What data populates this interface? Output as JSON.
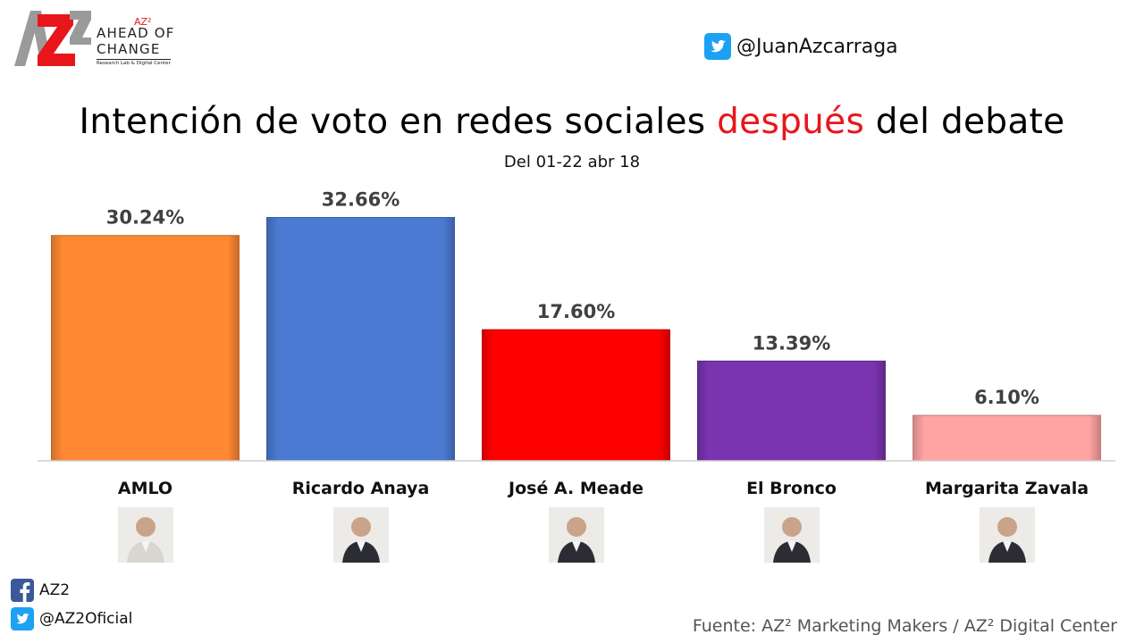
{
  "logo": {
    "az2": "AZ²",
    "line1": "AHEAD OF",
    "line2": "CHANGE",
    "tagline": "Research Lab & Digital Center"
  },
  "header": {
    "twitter_handle": "@JuanAzcarraga"
  },
  "title": {
    "before": "Intención de voto en redes sociales ",
    "highlight": "después",
    "after": " del debate"
  },
  "subtitle": "Del 01-22 abr 18",
  "chart_data": {
    "type": "bar",
    "categories": [
      "AMLO",
      "Ricardo Anaya",
      "José A. Meade",
      "El Bronco",
      "Margarita Zavala"
    ],
    "values": [
      30.24,
      32.66,
      17.6,
      13.39,
      6.1
    ],
    "value_labels": [
      "30.24%",
      "32.66%",
      "17.60%",
      "13.39%",
      "6.10%"
    ],
    "colors": [
      "#ff8833",
      "#4a7ad1",
      "#ff0000",
      "#7a34b0",
      "#ffa3a3"
    ],
    "unit": "%",
    "ylim": [
      0,
      35
    ],
    "grid": false,
    "legend": "none"
  },
  "photos": [
    "amlo-photo",
    "anaya-photo",
    "meade-photo",
    "bronco-photo",
    "zavala-photo"
  ],
  "footer": {
    "facebook": "AZ2",
    "twitter": "@AZ2Oficial",
    "source": "Fuente: AZ² Marketing Makers / AZ² Digital Center"
  }
}
